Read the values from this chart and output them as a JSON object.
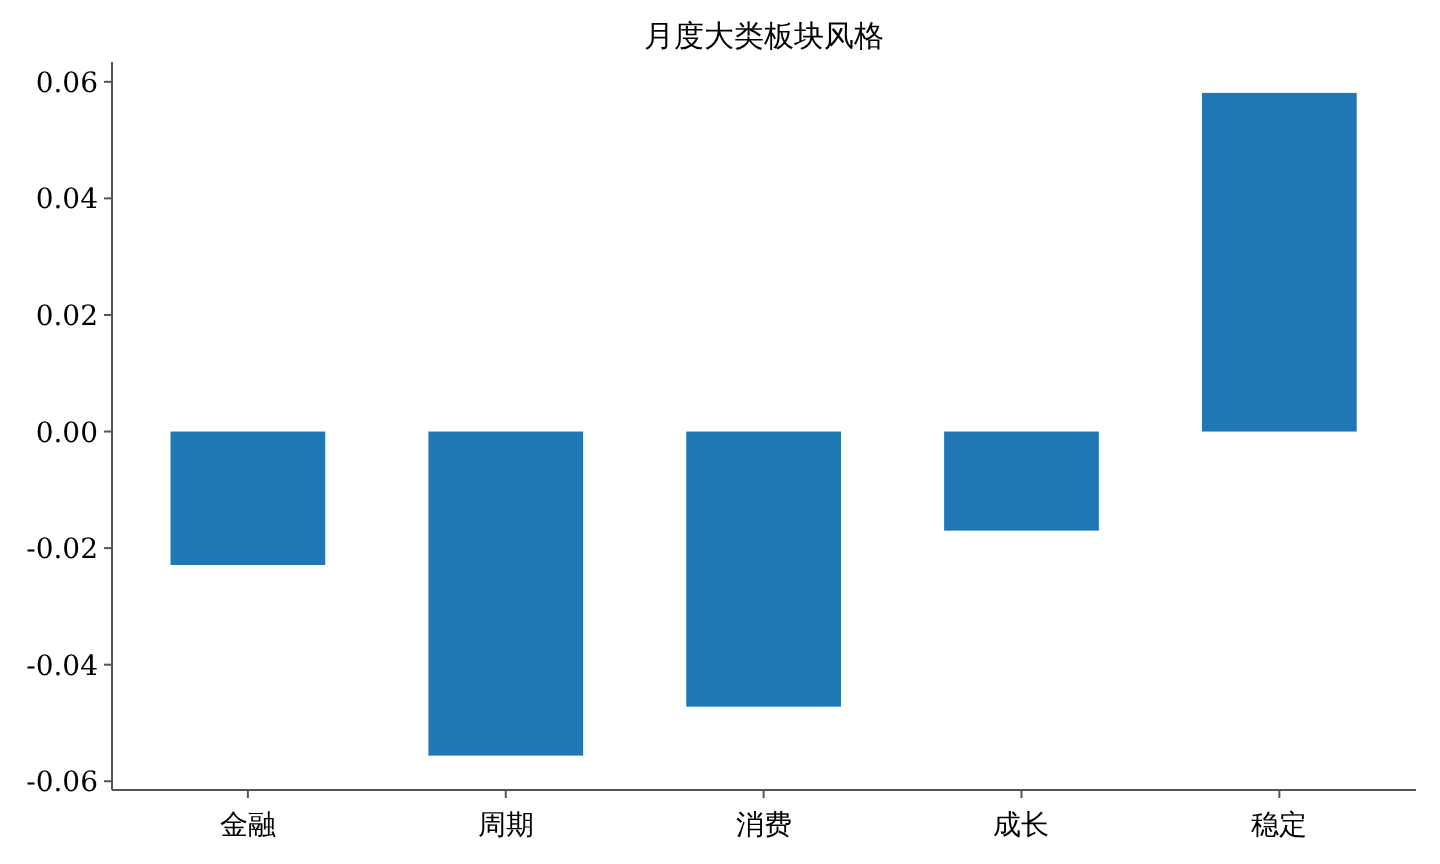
{
  "chart_data": {
    "type": "bar",
    "title": "月度大类板块风格",
    "categories": [
      "金融",
      "周期",
      "消费",
      "成长",
      "稳定"
    ],
    "values": [
      -0.0229,
      -0.0556,
      -0.0472,
      -0.017,
      0.0581
    ],
    "color": "#1f77b4",
    "ylim": [
      -0.0615,
      0.0634
    ],
    "yticks": [
      {
        "value": -0.06,
        "label": "-0.06"
      },
      {
        "value": -0.04,
        "label": "-0.04"
      },
      {
        "value": -0.02,
        "label": "-0.02"
      },
      {
        "value": 0,
        "label": "0.00"
      },
      {
        "value": 0.02,
        "label": "0.02"
      },
      {
        "value": 0.04,
        "label": "0.04"
      },
      {
        "value": 0.06,
        "label": "0.06"
      }
    ],
    "grid": false,
    "legend": false
  }
}
